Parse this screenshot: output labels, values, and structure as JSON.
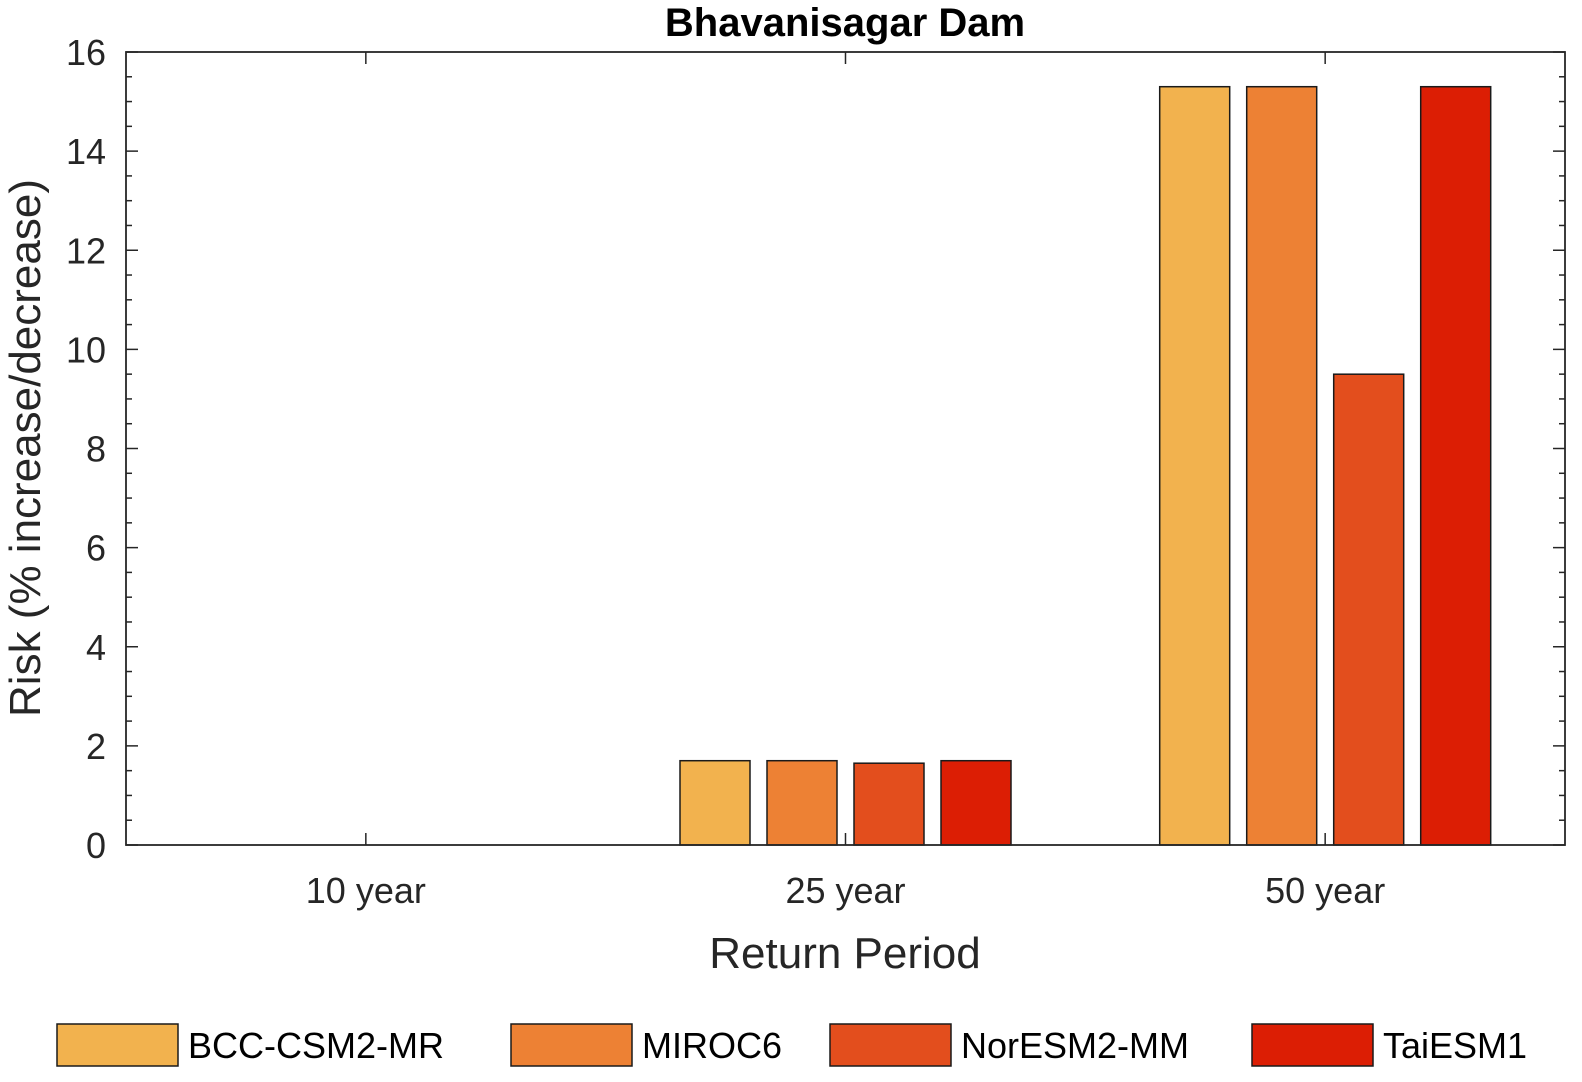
{
  "chart_data": {
    "type": "bar",
    "title": "Bhavanisagar Dam",
    "xlabel": "Return Period",
    "ylabel": "Risk (% increase/decrease)",
    "categories": [
      "10 year",
      "25 year",
      "50 year"
    ],
    "ylim": [
      0,
      16
    ],
    "yticks": [
      0,
      2,
      4,
      6,
      8,
      10,
      12,
      14,
      16
    ],
    "series": [
      {
        "name": "BCC-CSM2-MR",
        "color": "#F2B24E",
        "values": [
          0,
          1.7,
          15.3
        ]
      },
      {
        "name": "MIROC6",
        "color": "#ED8134",
        "values": [
          0,
          1.7,
          15.3
        ]
      },
      {
        "name": "NorESM2-MM",
        "color": "#E34E1D",
        "values": [
          0,
          1.65,
          9.5
        ]
      },
      {
        "name": "TaiESM1",
        "color": "#DC1E04",
        "values": [
          0,
          1.7,
          15.3
        ]
      }
    ],
    "legend_position": "bottom"
  }
}
